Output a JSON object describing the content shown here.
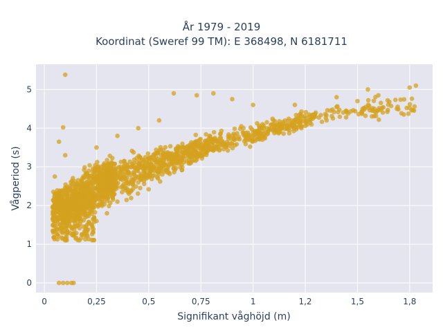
{
  "chart_data": {
    "type": "scatter",
    "title": "År 1979 - 2019",
    "subtitle": "Koordinat (Sweref 99 TM): E 368498, N 6181711",
    "xlabel": "Signifikant våghöjd (m)",
    "ylabel": "Vågperiod (s)",
    "xlim": [
      -0.04,
      1.86
    ],
    "ylim": [
      -0.25,
      5.65
    ],
    "xticks": [
      0,
      0.25,
      0.5,
      0.75,
      1,
      1.25,
      1.5,
      1.75
    ],
    "xtick_labels": [
      "0",
      "0,25",
      "0,5",
      "0,75",
      "1",
      "1,2",
      "1,5",
      "1,8"
    ],
    "yticks": [
      0,
      1,
      2,
      3,
      4,
      5
    ],
    "ytick_labels": [
      "0",
      "1",
      "2",
      "3",
      "4",
      "5"
    ],
    "grid": true,
    "marker_color": "#d4a21f",
    "background_color": "#e5e5f0",
    "series": [
      {
        "points_sample": [
          [
            0.1,
            5.38
          ],
          [
            0.09,
            4.02
          ],
          [
            0.07,
            3.65
          ],
          [
            0.1,
            3.3
          ],
          [
            0.05,
            2.75
          ],
          [
            0.06,
            2.2
          ],
          [
            0.05,
            1.6
          ],
          [
            0.04,
            1.35
          ],
          [
            0.1,
            1.1
          ],
          [
            0.15,
            1.15
          ],
          [
            0.2,
            1.4
          ],
          [
            0.25,
            1.6
          ],
          [
            0.3,
            1.8
          ],
          [
            0.35,
            2.1
          ],
          [
            0.4,
            2.35
          ],
          [
            0.45,
            2.6
          ],
          [
            0.5,
            2.75
          ],
          [
            0.55,
            2.9
          ],
          [
            0.6,
            3.05
          ],
          [
            0.7,
            3.25
          ],
          [
            0.8,
            3.45
          ],
          [
            0.9,
            3.6
          ],
          [
            1.0,
            3.8
          ],
          [
            1.1,
            4.05
          ],
          [
            1.2,
            4.2
          ],
          [
            1.3,
            4.4
          ],
          [
            1.4,
            4.55
          ],
          [
            1.5,
            4.7
          ],
          [
            1.6,
            4.85
          ],
          [
            1.75,
            5.05
          ],
          [
            1.78,
            5.1
          ],
          [
            0.25,
            3.5
          ],
          [
            0.35,
            3.8
          ],
          [
            0.45,
            4.0
          ],
          [
            0.55,
            4.2
          ],
          [
            0.62,
            4.9
          ],
          [
            0.73,
            4.85
          ],
          [
            0.81,
            4.9
          ],
          [
            0.9,
            4.75
          ],
          [
            1.0,
            4.6
          ],
          [
            1.2,
            4.6
          ],
          [
            1.4,
            4.8
          ],
          [
            1.55,
            5.0
          ],
          [
            0.07,
            0.0
          ],
          [
            0.09,
            0.0
          ],
          [
            0.11,
            0.0
          ],
          [
            0.13,
            0.0
          ],
          [
            0.14,
            0.0
          ]
        ]
      }
    ]
  }
}
